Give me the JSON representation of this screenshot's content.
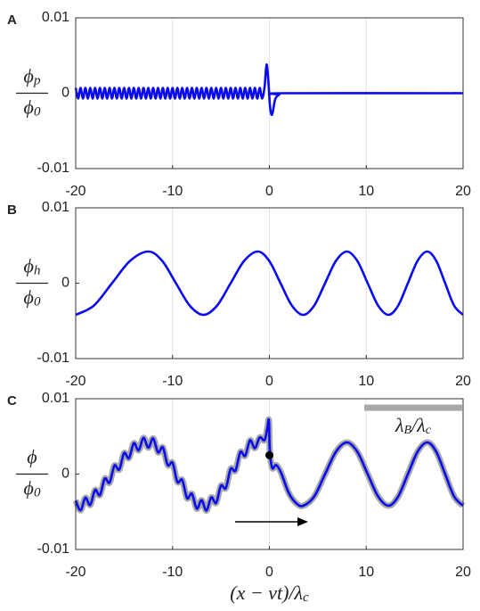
{
  "chart_data": [
    {
      "type": "line",
      "label": "A",
      "ylabel": {
        "num": [
          "ϕ",
          "p"
        ],
        "den": [
          "ϕ",
          "0"
        ]
      },
      "xlim": [
        -20,
        20
      ],
      "xticks": [
        -20,
        -10,
        0,
        10,
        20
      ],
      "ylim": [
        -0.01,
        0.01
      ],
      "yticks": [
        -0.01,
        0,
        0.01
      ],
      "grid": true,
      "x": [
        -20,
        -19.75,
        -19.5,
        -19.25,
        -19,
        -18.75,
        -18.5,
        -18.25,
        -18,
        -17.75,
        -17.5,
        -17.25,
        -17,
        -16.75,
        -16.5,
        -16.25,
        -16,
        -15.75,
        -15.5,
        -15.25,
        -15,
        -14.75,
        -14.5,
        -14.25,
        -14,
        -13.75,
        -13.5,
        -13.25,
        -13,
        -12.75,
        -12.5,
        -12.25,
        -12,
        -11.75,
        -11.5,
        -11.25,
        -11,
        -10.75,
        -10.5,
        -10.25,
        -10,
        -9.75,
        -9.5,
        -9.25,
        -9,
        -8.75,
        -8.5,
        -8.25,
        -8,
        -7.75,
        -7.5,
        -7.25,
        -7,
        -6.75,
        -6.5,
        -6.25,
        -6,
        -5.75,
        -5.5,
        -5.25,
        -5,
        -4.75,
        -4.5,
        -4.25,
        -4,
        -3.75,
        -3.5,
        -3.25,
        -3,
        -2.75,
        -2.5,
        -2.25,
        -2,
        -1.75,
        -1.5,
        -1.25,
        -1,
        -0.75,
        -0.5,
        -0.35,
        -0.25,
        -0.1,
        0.05,
        0.2,
        0.35,
        0.6,
        1,
        1.5,
        20
      ],
      "series": [
        {
          "color": "#0a0af0",
          "values": [
            0.0007,
            -0.0007,
            0.0007,
            -0.0007,
            0.0007,
            -0.0007,
            0.0007,
            -0.0007,
            0.0007,
            -0.0007,
            0.0007,
            -0.0007,
            0.0007,
            -0.0007,
            0.0007,
            -0.0007,
            0.0007,
            -0.0007,
            0.0007,
            -0.0007,
            0.0007,
            -0.0007,
            0.0007,
            -0.0007,
            0.0007,
            -0.0007,
            0.0007,
            -0.0007,
            0.0007,
            -0.0007,
            0.0007,
            -0.0007,
            0.0007,
            -0.0007,
            0.0007,
            -0.0007,
            0.0007,
            -0.0007,
            0.0007,
            -0.0007,
            0.0007,
            -0.0007,
            0.0007,
            -0.0007,
            0.0007,
            -0.0007,
            0.0007,
            -0.0007,
            0.0007,
            -0.0007,
            0.0007,
            -0.0007,
            0.0007,
            -0.0007,
            0.0007,
            -0.0007,
            0.0007,
            -0.0007,
            0.0007,
            -0.0007,
            0.0007,
            -0.0007,
            0.0007,
            -0.0007,
            0.0007,
            -0.0007,
            0.0007,
            -0.0007,
            0.0007,
            -0.0007,
            0.0007,
            -0.0007,
            0.0007,
            -0.0007,
            0.0007,
            -0.0007,
            0.0007,
            -0.0007,
            0.0008,
            0.0032,
            0.0037,
            0.0015,
            -0.0015,
            -0.0028,
            -0.0025,
            -0.0008,
            -0.0002,
            0,
            0
          ]
        }
      ]
    },
    {
      "type": "line",
      "label": "B",
      "ylabel": {
        "num": [
          "ϕ",
          "h"
        ],
        "den": [
          "ϕ",
          "0"
        ]
      },
      "xlim": [
        -20,
        20
      ],
      "xticks": [
        -20,
        -10,
        0,
        10,
        20
      ],
      "ylim": [
        -0.01,
        0.01
      ],
      "yticks": [
        -0.01,
        0,
        0.01
      ],
      "grid": true,
      "x": [
        -20,
        -18.125,
        -16.25,
        -14.375,
        -12.5,
        -11.075,
        -9.65,
        -8.225,
        -6.8,
        -5.4,
        -4,
        -2.6,
        -1.2,
        -0.025,
        1.15,
        2.325,
        3.5,
        4.625,
        5.75,
        6.875,
        8,
        9.075,
        10.15,
        11.225,
        12.3,
        13.3,
        14.3,
        15.3,
        16.3,
        17.225,
        18.15,
        19.075,
        20
      ],
      "series": [
        {
          "color": "#0a0af0",
          "values": [
            -0.0042,
            -0.00297,
            0,
            0.00297,
            0.0042,
            0.00297,
            0,
            -0.00297,
            -0.0042,
            -0.00297,
            0,
            0.00297,
            0.0042,
            0.00297,
            0,
            -0.00297,
            -0.0042,
            -0.00297,
            0,
            0.00297,
            0.0042,
            0.00297,
            0,
            -0.00297,
            -0.0042,
            -0.00297,
            0,
            0.00297,
            0.0042,
            0.00297,
            0,
            -0.00297,
            -0.0042
          ]
        }
      ]
    },
    {
      "type": "line",
      "label": "C",
      "ylabel": {
        "num": [
          "ϕ"
        ],
        "den": [
          "ϕ",
          "0"
        ]
      },
      "xlabel": [
        "(x − vt)/λ",
        "c"
      ],
      "xlim": [
        -20,
        20
      ],
      "xticks": [
        -20,
        -10,
        0,
        10,
        20
      ],
      "ylim": [
        -0.01,
        0.01
      ],
      "yticks": [
        -0.01,
        0,
        0.01
      ],
      "grid": true,
      "x": [
        -20,
        -19.5,
        -19,
        -18.5,
        -18,
        -17.5,
        -17,
        -16.5,
        -16,
        -15.5,
        -15,
        -14.5,
        -14,
        -13.5,
        -13,
        -12.5,
        -12,
        -11.5,
        -11,
        -10.5,
        -10,
        -9.5,
        -9,
        -8.5,
        -8,
        -7.5,
        -7,
        -6.5,
        -6,
        -5.5,
        -5,
        -4.5,
        -4,
        -3.5,
        -3,
        -2.5,
        -2,
        -1.5,
        -1,
        -0.5,
        -0.2,
        -0.05,
        0.05,
        0.3,
        0.7,
        1.2,
        2,
        2.8,
        3.5,
        4.625,
        5.75,
        6.875,
        8,
        9.075,
        10.15,
        11.225,
        12.3,
        13.3,
        14.3,
        15.3,
        16.3,
        17.225,
        18.15,
        19.075,
        20
      ],
      "series": [
        {
          "color": "#0a0af0",
          "outline_color": "#a8a8a8",
          "values": [
            -0.0035,
            -0.00481,
            -0.00314,
            -0.0041,
            -0.00211,
            -0.0028,
            -0.0006,
            -0.00114,
            0.00114,
            0.0006,
            0.0028,
            0.00211,
            0.0041,
            0.00314,
            0.00481,
            0.0035,
            0.00474,
            0.00288,
            0.00354,
            0.00119,
            0.00151,
            -0.00105,
            -0.00077,
            -0.00319,
            -0.00261,
            -0.00459,
            -0.00347,
            -0.00484,
            -0.00308,
            -0.00383,
            -0.00153,
            -0.00186,
            0.0007,
            0.00046,
            0.00293,
            0.00243,
            0.00448,
            0.00344,
            0.00486,
            0.0045,
            0.0062,
            0.0071,
            0.003,
            0.0008,
            0.0012,
            0.0002,
            -0.0025,
            -0.0039,
            -0.0042,
            -0.00297,
            0,
            0.00297,
            0.0042,
            0.00297,
            0,
            -0.00297,
            -0.0042,
            -0.00297,
            0,
            0.00297,
            0.0042,
            0.00297,
            0,
            -0.00297,
            -0.0042
          ]
        }
      ],
      "marker": {
        "x": 0,
        "y": 0.0025,
        "color": "#000000"
      },
      "scale_bar": {
        "x": [
          9.8,
          19.9
        ],
        "y": 0.0088,
        "color": "#a8a8a8",
        "label": [
          "λ",
          "B",
          "/λ",
          "c"
        ]
      }
    }
  ]
}
